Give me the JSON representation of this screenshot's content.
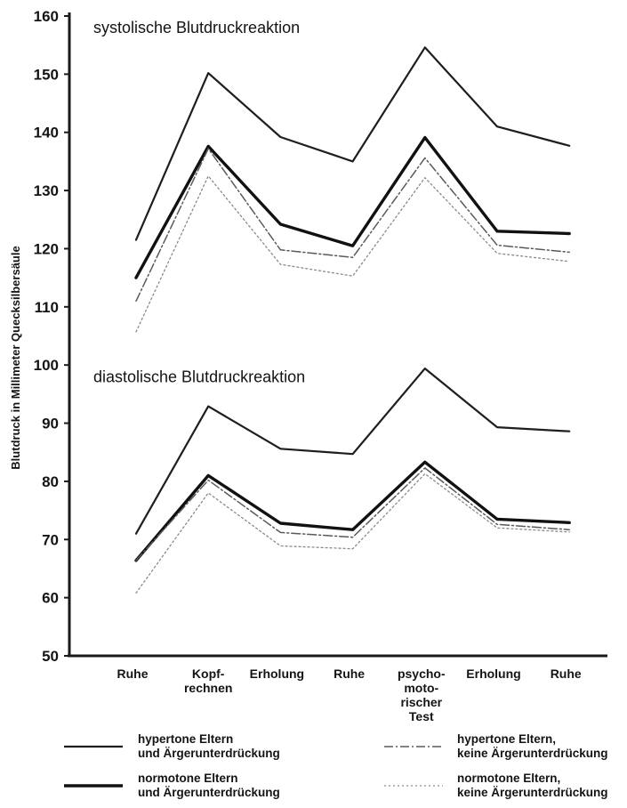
{
  "chart_data": {
    "type": "line",
    "ylabel": "Blutdruck in Millimeter Quecksilbersäule",
    "ylim": [
      50,
      160
    ],
    "yticks": [
      50,
      60,
      70,
      80,
      90,
      100,
      110,
      120,
      130,
      140,
      150,
      160
    ],
    "categories": [
      [
        "Ruhe"
      ],
      [
        "Kopf-",
        "rechnen"
      ],
      [
        "Erholung"
      ],
      [
        "Ruhe"
      ],
      [
        "psycho-",
        "moto-",
        "rischer",
        "Test"
      ],
      [
        "Erholung"
      ],
      [
        "Ruhe"
      ]
    ],
    "annotations": [
      {
        "text": "systolische Blutdruckreaktion",
        "y": 158
      },
      {
        "text": "diastolische Blutdruckreaktion",
        "y": 98
      }
    ],
    "legend": [
      {
        "lines": [
          "hypertone Eltern",
          "und Ärgerunterdrückung"
        ],
        "style": "solid-thin",
        "placement": "bottom-left"
      },
      {
        "lines": [
          "hypertone Eltern,",
          "keine Ärgerunterdrückung"
        ],
        "style": "dash-dot",
        "placement": "bottom-right"
      },
      {
        "lines": [
          "normotone Eltern",
          "und Ärgerunterdrückung"
        ],
        "style": "solid-thick",
        "placement": "bottom-left"
      },
      {
        "lines": [
          "normotone Eltern,",
          "keine Ärgerunterdrückung"
        ],
        "style": "dotted",
        "placement": "bottom-right"
      }
    ],
    "series": [
      {
        "group": "systolisch",
        "legend_index": 0,
        "values": [
          121.5,
          150.2,
          139.2,
          135.0,
          154.6,
          141.0,
          137.7
        ]
      },
      {
        "group": "systolisch",
        "legend_index": 2,
        "values": [
          115.0,
          137.6,
          124.2,
          120.5,
          139.1,
          123.0,
          122.6
        ]
      },
      {
        "group": "systolisch",
        "legend_index": 1,
        "values": [
          111.0,
          137.2,
          119.8,
          118.5,
          135.6,
          120.6,
          119.4
        ]
      },
      {
        "group": "systolisch",
        "legend_index": 3,
        "values": [
          105.7,
          132.5,
          117.3,
          115.3,
          132.2,
          119.2,
          117.8
        ]
      },
      {
        "group": "diastolisch",
        "legend_index": 0,
        "values": [
          71.0,
          92.9,
          85.6,
          84.7,
          99.4,
          89.3,
          88.6
        ]
      },
      {
        "group": "diastolisch",
        "legend_index": 2,
        "values": [
          66.4,
          81.0,
          72.8,
          71.7,
          83.3,
          73.5,
          72.9
        ]
      },
      {
        "group": "diastolisch",
        "legend_index": 1,
        "values": [
          66.4,
          80.2,
          71.2,
          70.4,
          82.3,
          72.6,
          71.7
        ]
      },
      {
        "group": "diastolisch",
        "legend_index": 3,
        "values": [
          60.8,
          78.0,
          68.9,
          68.4,
          81.3,
          72.0,
          71.3
        ]
      }
    ]
  }
}
